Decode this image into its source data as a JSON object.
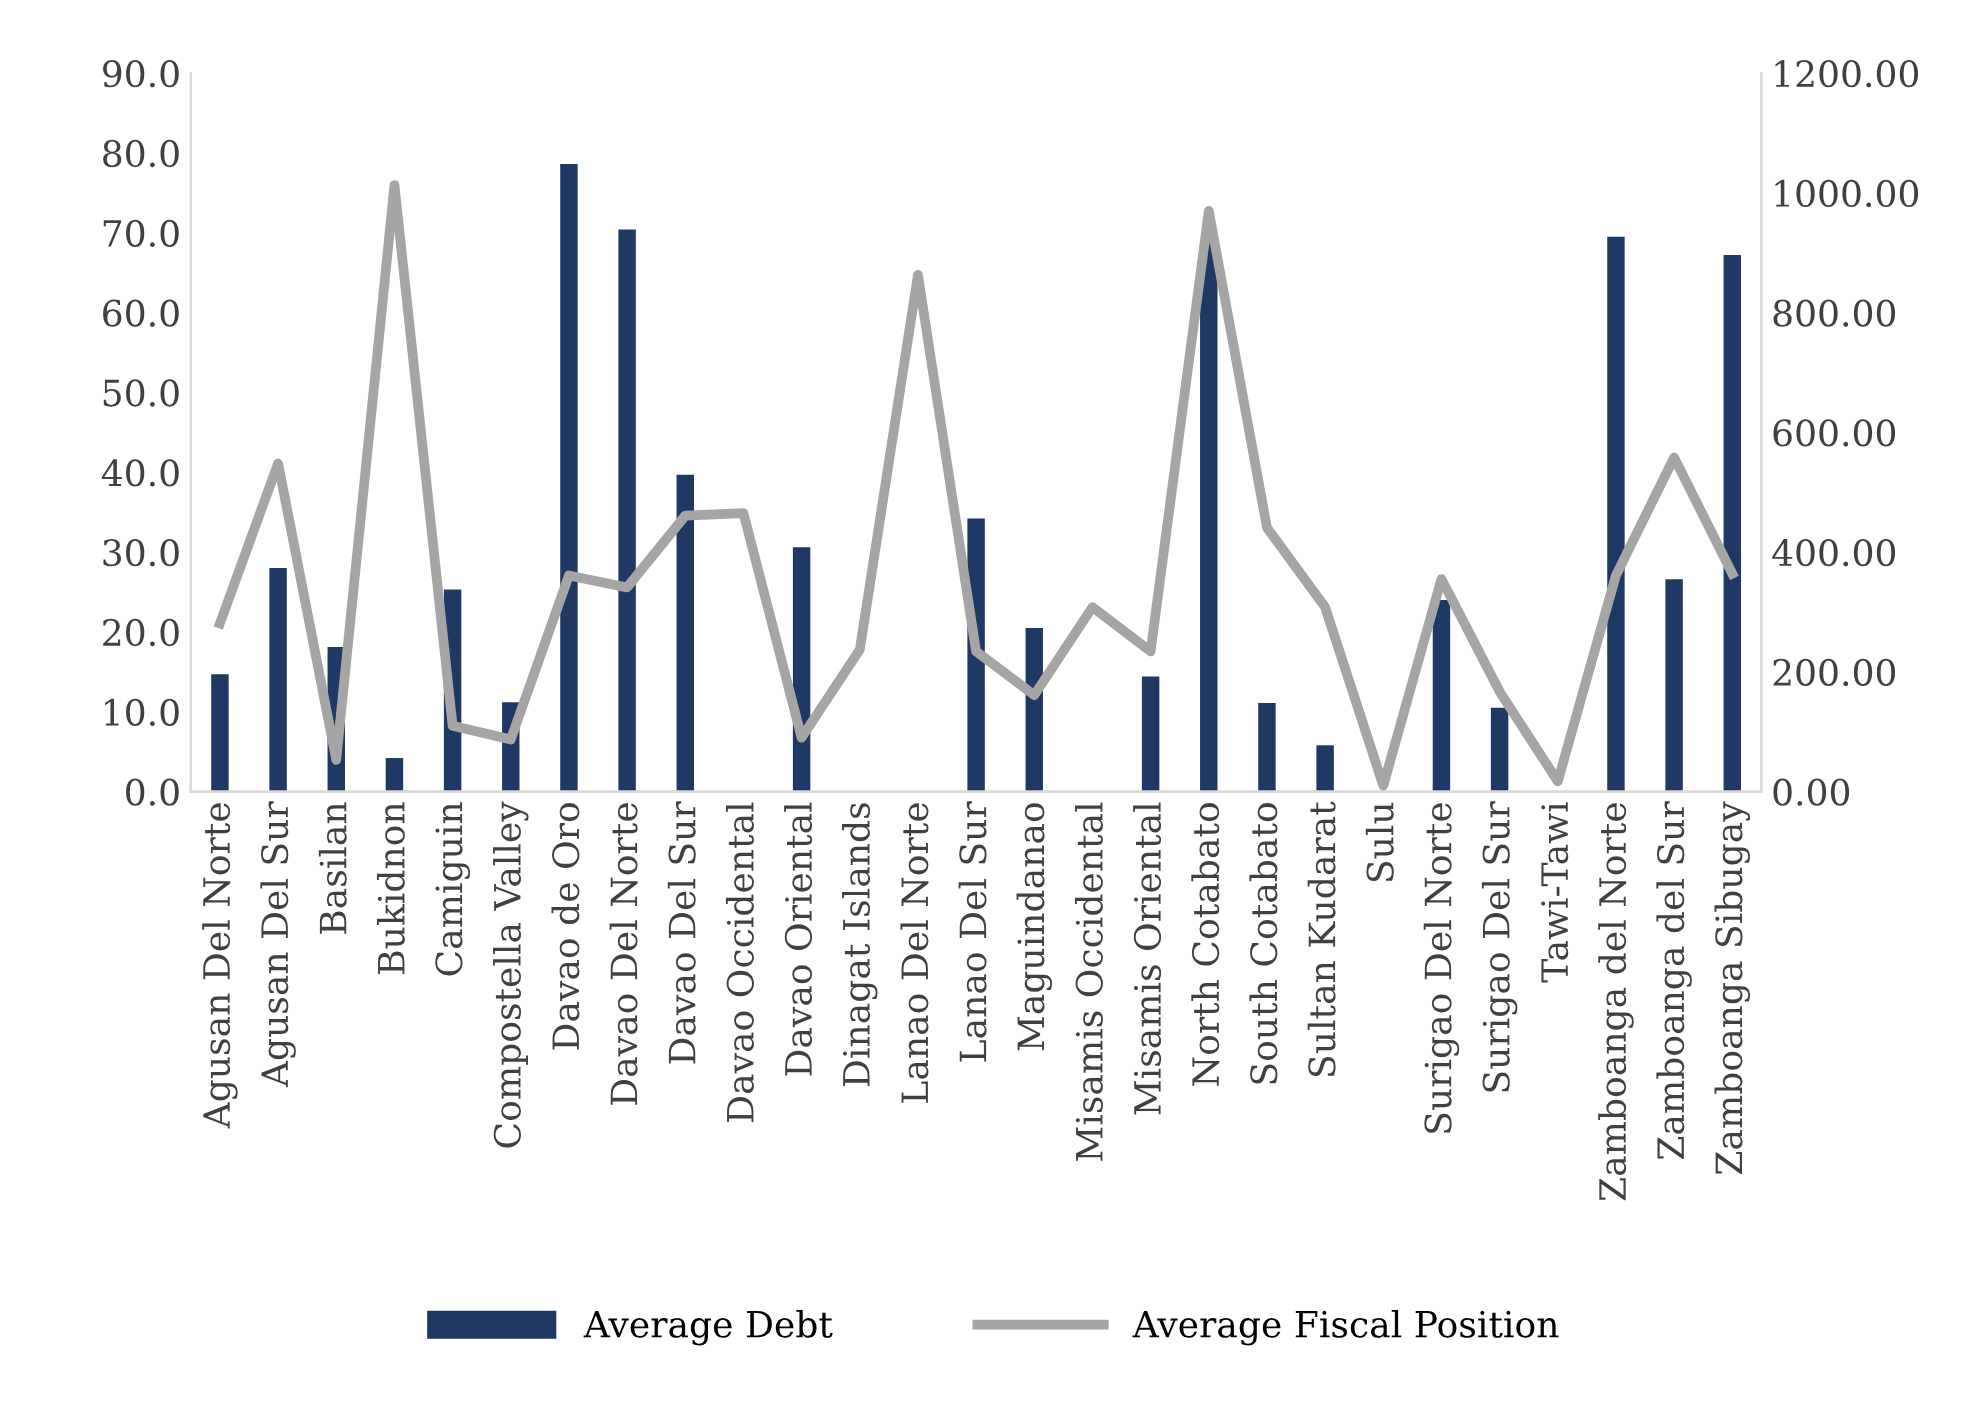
{
  "chart_data": {
    "type": "bar",
    "categories": [
      "Agusan Del Norte",
      "Agusan Del Sur",
      "Basilan",
      "Bukidnon",
      "Camiguin",
      "Compostella Valley",
      "Davao de Oro",
      "Davao Del Norte",
      "Davao Del Sur",
      "Davao Occidental",
      "Davao Oriental",
      "Dinagat Islands",
      "Lanao Del Norte",
      "Lanao Del Sur",
      "Maguindanao",
      "Misamis Occidental",
      "Misamis Oriental",
      "North Cotabato",
      "South Cotabato",
      "Sultan Kudarat",
      "Sulu",
      "Surigao Del Norte",
      "Surigao Del Sur",
      "Tawi-Tawi",
      "Zamboanga del Norte",
      "Zamboanga del Sur",
      "Zamboanga Sibugay"
    ],
    "series": [
      {
        "name": "Average Debt",
        "color": "#1f3864",
        "values": [
          14.7,
          28.0,
          18.1,
          4.2,
          25.3,
          11.2,
          78.6,
          70.4,
          39.7,
          null,
          30.6,
          null,
          null,
          34.2,
          20.5,
          null,
          14.4,
          69.0,
          11.1,
          5.8,
          null,
          24.0,
          10.5,
          null,
          69.5,
          26.6,
          67.2
        ]
      },
      {
        "name": "Average Fiscal Position",
        "type": "line",
        "axis": "y2",
        "color": "#a5a5a5",
        "values": [
          281,
          548,
          53,
          1013,
          110,
          87,
          361,
          341,
          461,
          465,
          90,
          237,
          863,
          234,
          161,
          308,
          234,
          970,
          441,
          308,
          10,
          355,
          167,
          17,
          361,
          558,
          364
        ]
      }
    ],
    "ylim": [
      0,
      90
    ],
    "yticks": [
      {
        "value": 0,
        "label": "0.0"
      },
      {
        "value": 10,
        "label": "10.0"
      },
      {
        "value": 20,
        "label": "20.0"
      },
      {
        "value": 30,
        "label": "30.0"
      },
      {
        "value": 40,
        "label": "40.0"
      },
      {
        "value": 50,
        "label": "50.0"
      },
      {
        "value": 60,
        "label": "60.0"
      },
      {
        "value": 70,
        "label": "70.0"
      },
      {
        "value": 80,
        "label": "80.0"
      },
      {
        "value": 90,
        "label": "90.0"
      }
    ],
    "y2lim": [
      0,
      1200
    ],
    "y2ticks": [
      {
        "value": 0,
        "label": "0.00"
      },
      {
        "value": 200,
        "label": "200.00"
      },
      {
        "value": 400,
        "label": "400.00"
      },
      {
        "value": 600,
        "label": "600.00"
      },
      {
        "value": 800,
        "label": "800.00"
      },
      {
        "value": 1000,
        "label": "1000.00"
      },
      {
        "value": 1200,
        "label": "1200.00"
      }
    ],
    "legend": "bottom",
    "marker": "none",
    "line_style": "solid"
  }
}
